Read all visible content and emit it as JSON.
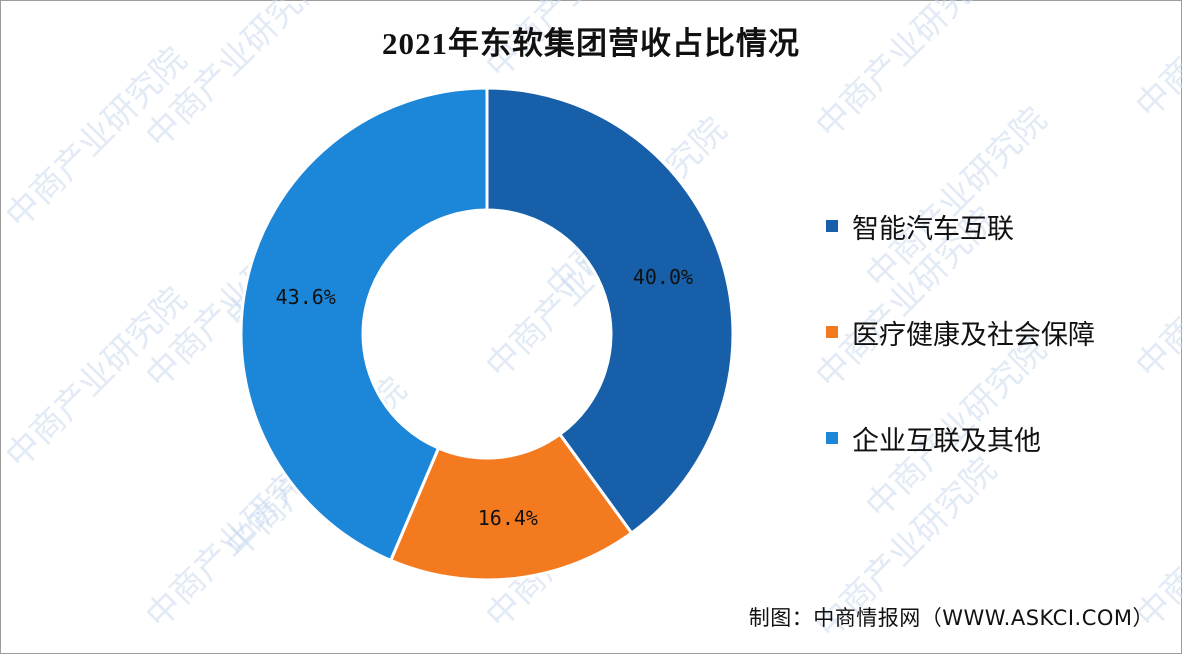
{
  "chart_data": {
    "type": "pie",
    "title": "2021年东软集团营收占比情况",
    "categories": [
      "智能汽车互联",
      "医疗健康及社会保障",
      "企业互联及其他"
    ],
    "values": [
      40.0,
      16.4,
      43.6
    ],
    "labels": [
      "40.0%",
      "16.4%",
      "43.6%"
    ],
    "colors": [
      "#175fa8",
      "#f47a20",
      "#1c86d8"
    ],
    "donut": true,
    "legend_placement": "right",
    "start_angle_deg": 0,
    "direction": "clockwise"
  },
  "legend": {
    "items": [
      {
        "label": "智能汽车互联",
        "color": "#175fa8"
      },
      {
        "label": "医疗健康及社会保障",
        "color": "#f47a20"
      },
      {
        "label": "企业互联及其他",
        "color": "#1c86d8"
      }
    ]
  },
  "source": "制图：中商情报网（WWW.ASKCI.COM）",
  "watermark": {
    "text": "中商产业研究院",
    "color": "#c9d9ee"
  }
}
